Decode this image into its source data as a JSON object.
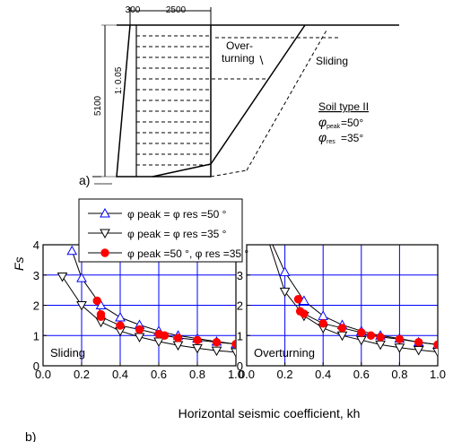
{
  "panel_a": {
    "label": "a)",
    "dim_top_left": "300",
    "dim_top_right": "2500",
    "dim_height": "5100",
    "slope_label": "1: 0.05",
    "overturning_label_line1": "Over-",
    "overturning_label_line2": "turning",
    "sliding_label": "Sliding",
    "soil_type": "Soil type II",
    "phi_peak_sub": "peak",
    "phi_peak_val": "=50°",
    "phi_res_sub": "res",
    "phi_res_val": "=35°"
  },
  "panel_b_label": "b)",
  "legend": {
    "entries": [
      {
        "marker": "triangle-up-open",
        "text": "φ peak = φ res =50 °"
      },
      {
        "marker": "triangle-down-open",
        "text": "φ peak = φ res =35 °"
      },
      {
        "marker": "circle-filled-red",
        "text": "φ peak =50 °, φ res =35 °"
      }
    ]
  },
  "chart_data": [
    {
      "type": "line",
      "panel_label": "Sliding",
      "ylabel": "Fs",
      "xlabel": "Horizontal seismic coefficient, kh",
      "xlim": [
        0.0,
        1.0
      ],
      "ylim": [
        0,
        4
      ],
      "x_ticks": [
        "0.0",
        "0.2",
        "0.4",
        "0.6",
        "0.8",
        "1.0"
      ],
      "y_ticks": [
        "0",
        "1",
        "2",
        "3",
        "4"
      ],
      "grid": true,
      "series": [
        {
          "name": "φpeak = φres =50°",
          "marker": "triangle-up-open",
          "color": "#0000ff",
          "x": [
            0.15,
            0.2,
            0.3,
            0.4,
            0.5,
            0.6,
            0.7,
            0.8,
            0.9,
            1.0
          ],
          "y": [
            3.8,
            2.9,
            2.0,
            1.6,
            1.35,
            1.15,
            1.0,
            0.9,
            0.8,
            0.72
          ]
        },
        {
          "name": "φpeak = φres =35°",
          "marker": "triangle-down-open",
          "color": "#000000",
          "x": [
            0.1,
            0.2,
            0.3,
            0.4,
            0.5,
            0.6,
            0.7,
            0.8,
            0.9,
            1.0
          ],
          "y": [
            2.95,
            2.0,
            1.45,
            1.15,
            0.95,
            0.8,
            0.68,
            0.58,
            0.5,
            0.45
          ]
        },
        {
          "name": "φpeak =50°, φres =35°",
          "marker": "circle-filled-red",
          "color": "#ff0000",
          "x": [
            0.28,
            0.3,
            0.3,
            0.4,
            0.5,
            0.6,
            0.63,
            0.7,
            0.8,
            0.9,
            1.0
          ],
          "y": [
            2.15,
            1.7,
            1.62,
            1.33,
            1.2,
            1.05,
            1.0,
            0.92,
            0.85,
            0.78,
            0.72
          ]
        }
      ]
    },
    {
      "type": "line",
      "panel_label": "Overturning",
      "xlabel": "Horizontal seismic coefficient, kh",
      "xlim": [
        0.0,
        1.0
      ],
      "ylim": [
        0,
        4
      ],
      "x_ticks": [
        "0.0",
        "0.2",
        "0.4",
        "0.6",
        "0.8",
        "1.0"
      ],
      "y_ticks": [
        "0",
        "1",
        "2",
        "3",
        "4"
      ],
      "grid": true,
      "series": [
        {
          "name": "φpeak = φres =50°",
          "marker": "triangle-up-open",
          "color": "#0000ff",
          "x": [
            0.1,
            0.2,
            0.3,
            0.4,
            0.5,
            0.6,
            0.7,
            0.8,
            0.9,
            1.0
          ],
          "y": [
            4.5,
            3.1,
            2.15,
            1.65,
            1.35,
            1.15,
            1.0,
            0.9,
            0.78,
            0.7
          ]
        },
        {
          "name": "φpeak = φres =35°",
          "marker": "triangle-down-open",
          "color": "#000000",
          "x": [
            0.1,
            0.2,
            0.3,
            0.4,
            0.5,
            0.6,
            0.7,
            0.8,
            0.9,
            1.0
          ],
          "y": [
            4.4,
            2.45,
            1.65,
            1.25,
            1.0,
            0.85,
            0.7,
            0.6,
            0.52,
            0.46
          ]
        },
        {
          "name": "φpeak =50°, φres =35°",
          "marker": "circle-filled-red",
          "color": "#ff0000",
          "x": [
            0.27,
            0.28,
            0.3,
            0.4,
            0.5,
            0.6,
            0.65,
            0.7,
            0.8,
            0.9,
            1.0
          ],
          "y": [
            2.2,
            1.8,
            1.72,
            1.4,
            1.25,
            1.1,
            1.0,
            0.95,
            0.88,
            0.78,
            0.7
          ]
        }
      ]
    }
  ]
}
